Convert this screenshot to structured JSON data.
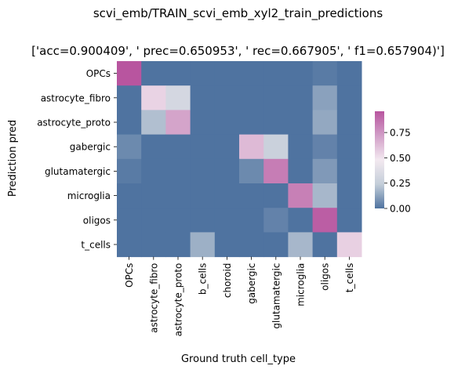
{
  "chart_data": {
    "type": "heatmap",
    "title_line1": "scvi_emb/TRAIN_scvi_emb_xyl2_train_predictions",
    "title_line2": "['acc=0.900409', '  prec=0.650953', ' rec=0.667905', ' f1=0.657904)']",
    "xlabel": "Ground truth cell_type",
    "ylabel": "Prediction pred",
    "x_categories": [
      "OPCs",
      "astrocyte_fibro",
      "astrocyte_proto",
      "b_cells",
      "choroid",
      "gabergic",
      "glutamatergic",
      "microglia",
      "oligos",
      "t_cells"
    ],
    "y_categories": [
      "OPCs",
      "astrocyte_fibro",
      "astrocyte_proto",
      "gabergic",
      "glutamatergic",
      "microglia",
      "oligos",
      "t_cells"
    ],
    "values": [
      [
        0.96,
        0.0,
        0.0,
        0.0,
        0.0,
        0.0,
        0.0,
        0.0,
        0.02,
        0.0
      ],
      [
        0.0,
        0.55,
        0.32,
        0.0,
        0.0,
        0.0,
        0.0,
        0.0,
        0.12,
        0.0
      ],
      [
        0.0,
        0.2,
        0.7,
        0.0,
        0.0,
        0.0,
        0.0,
        0.0,
        0.14,
        0.0
      ],
      [
        0.06,
        0.0,
        0.0,
        0.0,
        0.0,
        0.63,
        0.27,
        0.0,
        0.04,
        0.0
      ],
      [
        0.02,
        0.0,
        0.0,
        0.0,
        0.0,
        0.06,
        0.83,
        0.0,
        0.1,
        0.0
      ],
      [
        0.0,
        0.0,
        0.0,
        0.0,
        0.0,
        0.0,
        0.0,
        0.82,
        0.18,
        0.0
      ],
      [
        0.0,
        0.0,
        0.0,
        0.0,
        0.0,
        0.0,
        0.04,
        0.0,
        0.93,
        0.0
      ],
      [
        0.0,
        0.0,
        0.0,
        0.16,
        0.0,
        0.0,
        0.0,
        0.18,
        0.0,
        0.56
      ]
    ],
    "colorbar": {
      "ticks": [
        0.0,
        0.25,
        0.5,
        0.75
      ],
      "tick_labels": [
        "0.00",
        "0.25",
        "0.50",
        "0.75"
      ],
      "vmin": 0.0,
      "vmax": 0.96
    },
    "colormap": [
      "#4f73a0",
      "#c4ced9",
      "#f3e9f0",
      "#d19ec7",
      "#b8559f"
    ]
  }
}
